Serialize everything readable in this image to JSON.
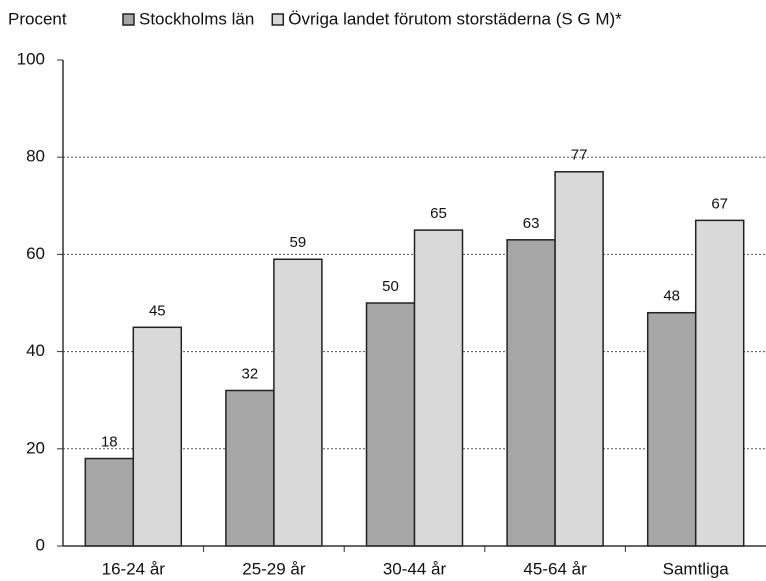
{
  "chart_data": {
    "type": "bar",
    "y_label": "Procent",
    "categories": [
      "16-24 år",
      "25-29 år",
      "30-44 år",
      "45-64 år",
      "Samtliga"
    ],
    "series": [
      {
        "name": "Stockholms län",
        "color": "#a6a6a6",
        "values": [
          18,
          32,
          50,
          63,
          48
        ]
      },
      {
        "name": "Övriga landet förutom storstäderna (S G M)*",
        "color": "#d9d9d9",
        "values": [
          45,
          59,
          65,
          77,
          67
        ]
      }
    ],
    "ylim": [
      0,
      100
    ],
    "yticks": [
      0,
      20,
      40,
      60,
      80,
      100
    ],
    "grid": true,
    "legend": "top"
  }
}
